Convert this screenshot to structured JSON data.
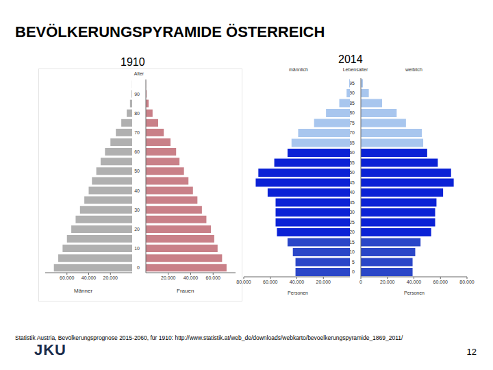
{
  "title": "BEVÖLKERUNGSPYRAMIDE ÖSTERREICH",
  "source": "Statistik Austria, Bevölkerungsprognose 2015-2060, für 1910: http://www.statistik.at/web_de/downloads/webkarto/bevoelkerungspyramide_1869_2011/",
  "logo": "JKU",
  "page": "12",
  "chart_data": [
    {
      "type": "bar",
      "title": "1910",
      "orientation": "horizontal",
      "y_label": "Alter",
      "categories": [
        "0",
        null,
        "10",
        null,
        "20",
        null,
        "30",
        null,
        "40",
        null,
        "50",
        null,
        "60",
        null,
        "70",
        null,
        "80",
        null,
        "90",
        null
      ],
      "series": [
        {
          "name": "Männer",
          "color": "#b0b0b0",
          "values": [
            72000,
            68000,
            64000,
            60000,
            56000,
            52000,
            48000,
            44000,
            40000,
            37000,
            33000,
            29000,
            25000,
            20000,
            15000,
            10000,
            5000,
            2000,
            500,
            100
          ]
        },
        {
          "name": "Frauen",
          "color": "#c98088",
          "values": [
            72000,
            68000,
            64000,
            61000,
            58000,
            54000,
            50000,
            46000,
            42000,
            38000,
            34000,
            30000,
            27000,
            22000,
            16000,
            11000,
            6000,
            2500,
            700,
            100
          ]
        }
      ],
      "xlim": [
        0,
        80000
      ],
      "xticks": [
        {
          "value": 20000,
          "label": "20.000"
        },
        {
          "value": 40000,
          "label": "40.000"
        },
        {
          "value": 60000,
          "label": "60.000"
        }
      ]
    },
    {
      "type": "bar",
      "title": "2014",
      "orientation": "horizontal",
      "y_label": "Lebensalter",
      "x_label": "Personen",
      "categories": [
        "0",
        "5",
        "10",
        "15",
        "20",
        "25",
        "30",
        "35",
        "40",
        "45",
        "50",
        "55",
        "60",
        "65",
        "70",
        "75",
        "80",
        "85",
        "90",
        "95"
      ],
      "series": [
        {
          "name": "männlich",
          "colors": [
            "#2a46c8",
            "#2a46c8",
            "#2a46c8",
            "#2a46c8",
            "#0b22d6",
            "#0b22d6",
            "#0b22d6",
            "#0b22d6",
            "#0b22d6",
            "#0b22d6",
            "#0b22d6",
            "#0b22d6",
            "#0b22d6",
            "#a8c6ee",
            "#a8c6ee",
            "#a8c6ee",
            "#a8c6ee",
            "#a8c6ee",
            "#a8c6ee",
            "#a8c6ee"
          ],
          "values": [
            41000,
            41000,
            43000,
            47000,
            55000,
            56000,
            56000,
            56000,
            62000,
            71000,
            69000,
            57000,
            47000,
            44000,
            39000,
            27000,
            18000,
            8000,
            2500,
            500
          ]
        },
        {
          "name": "weiblich",
          "colors": [
            "#2a46c8",
            "#2a46c8",
            "#2a46c8",
            "#2a46c8",
            "#0b22d6",
            "#0b22d6",
            "#0b22d6",
            "#0b22d6",
            "#0b22d6",
            "#0b22d6",
            "#0b22d6",
            "#0b22d6",
            "#0b22d6",
            "#a8c6ee",
            "#a8c6ee",
            "#a8c6ee",
            "#a8c6ee",
            "#a8c6ee",
            "#a8c6ee",
            "#a8c6ee"
          ],
          "values": [
            39000,
            39000,
            41000,
            45000,
            53000,
            56000,
            56000,
            57000,
            62000,
            70000,
            68000,
            58000,
            50000,
            47000,
            46000,
            34000,
            27000,
            16000,
            6000,
            1500
          ]
        }
      ],
      "xlim": [
        0,
        80000
      ],
      "xticks": [
        0,
        {
          "value": 20000,
          "label": "20.000"
        },
        {
          "value": 40000,
          "label": "40.000"
        },
        {
          "value": 60000,
          "label": "60.000"
        },
        {
          "value": 80000,
          "label": "80.000"
        }
      ]
    }
  ]
}
